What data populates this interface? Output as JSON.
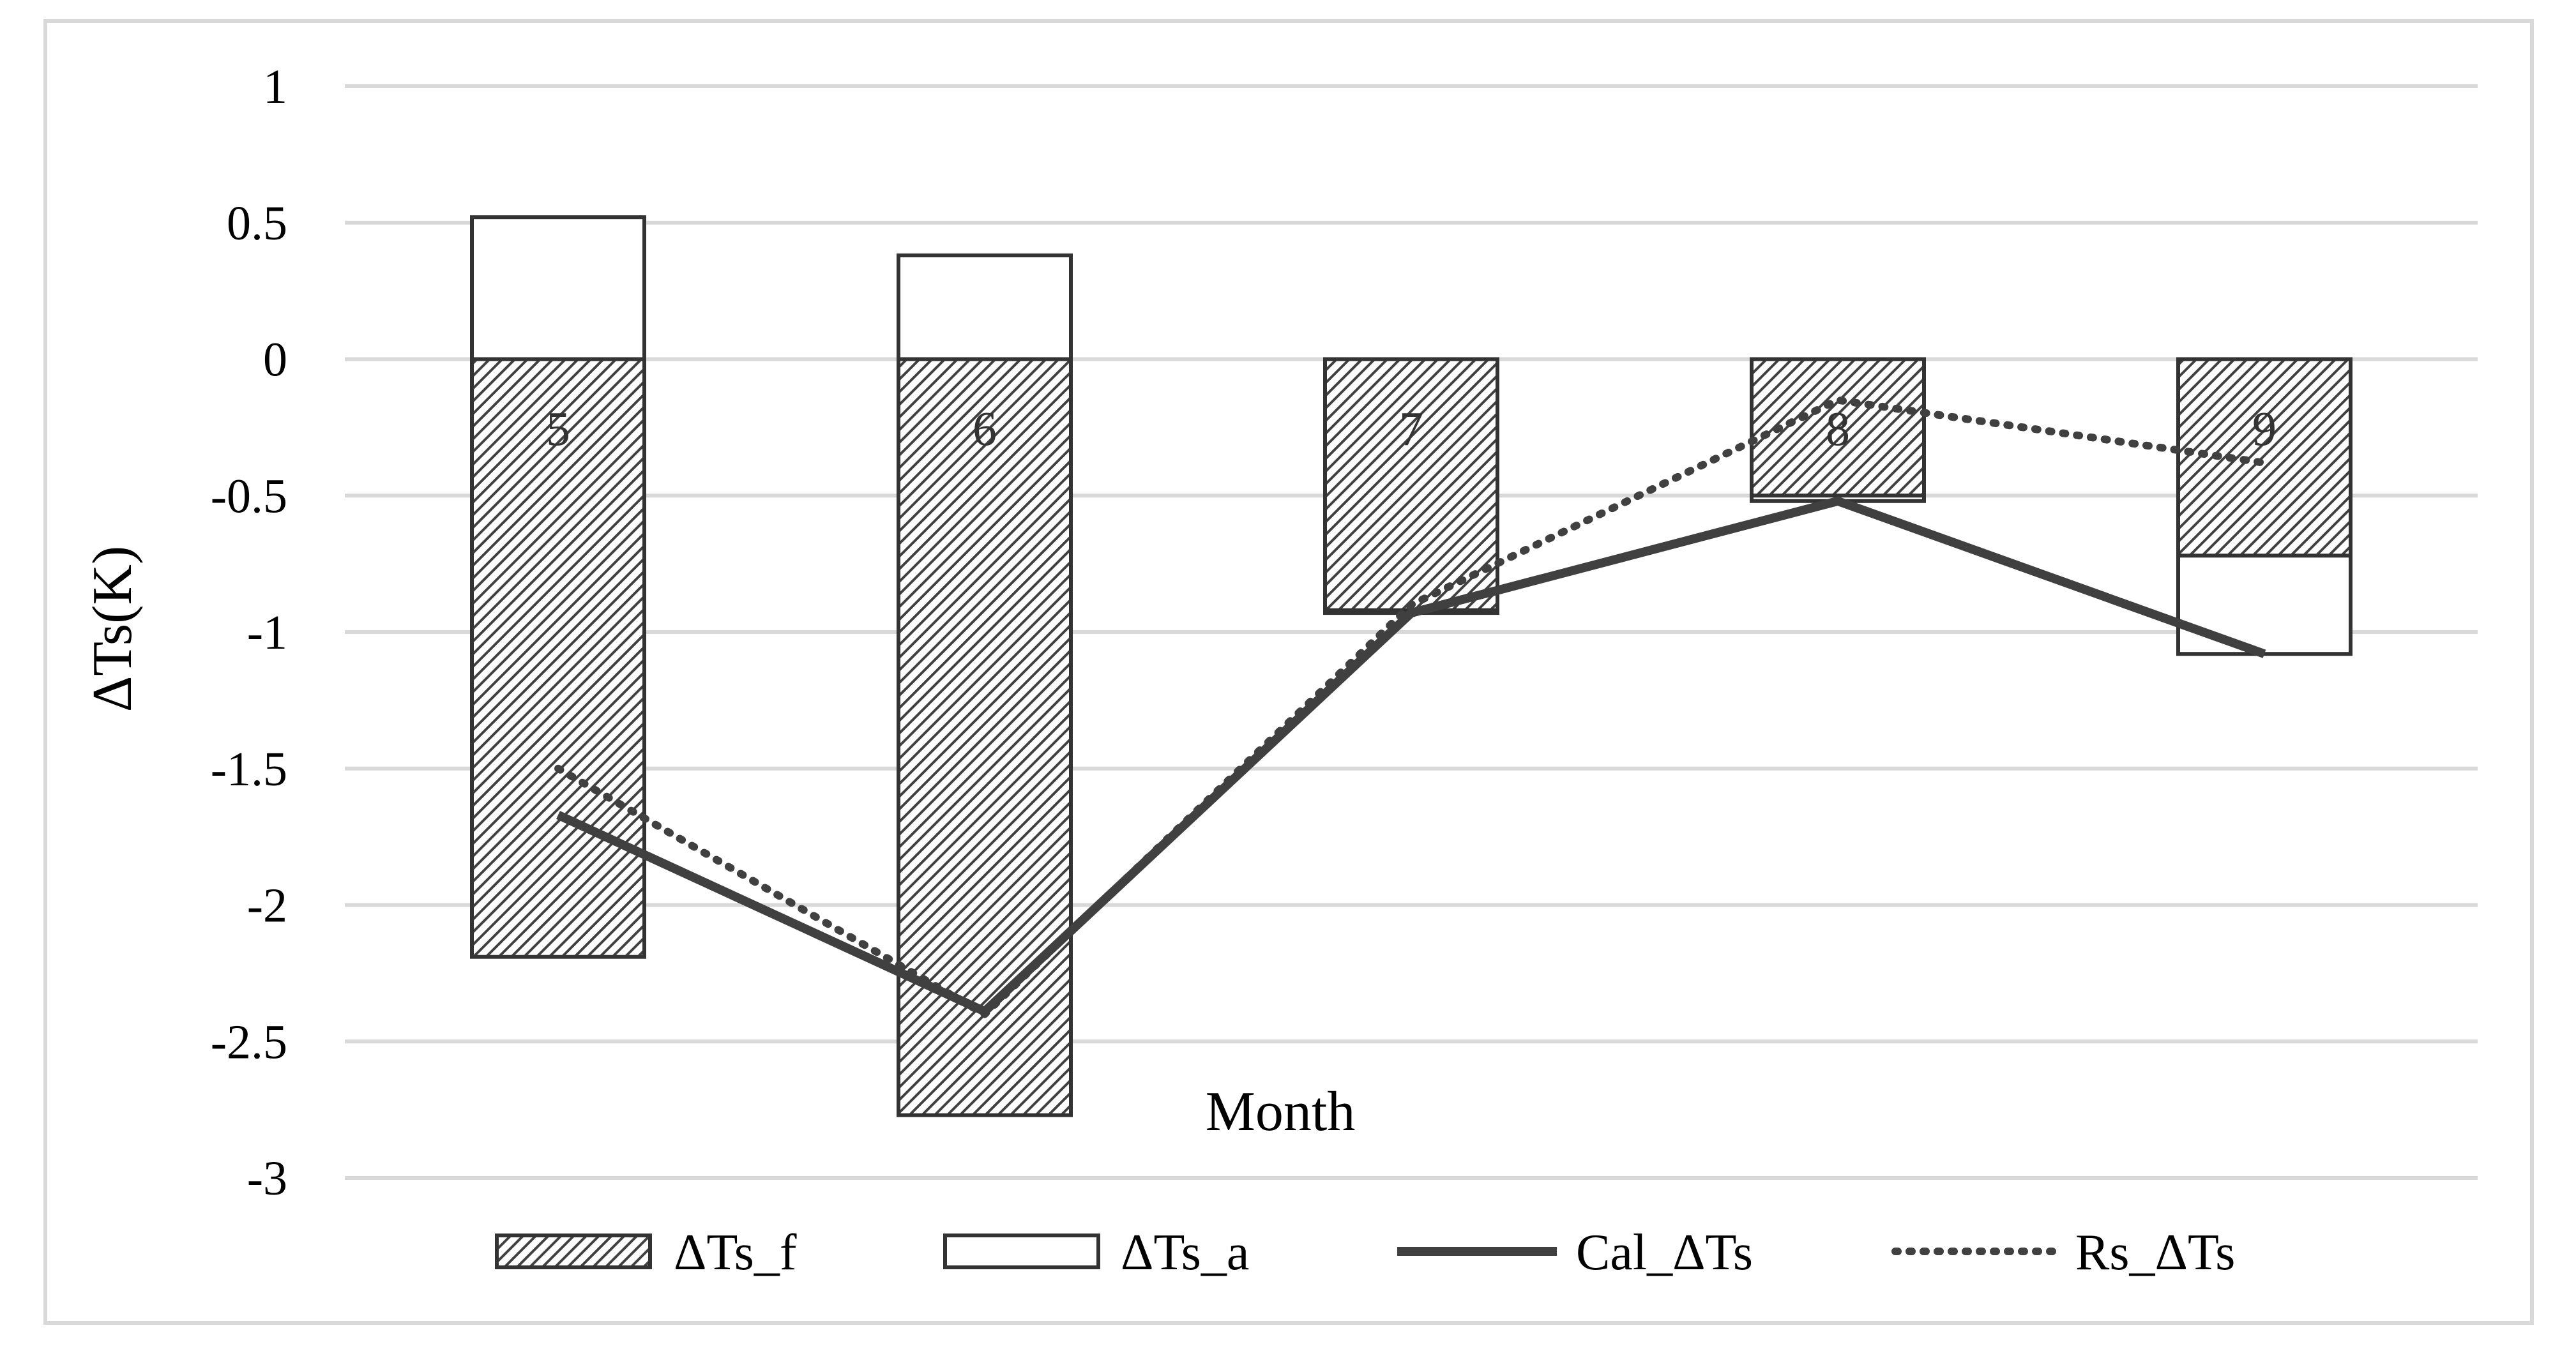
{
  "chart_data": {
    "type": "bar",
    "categories": [
      "5",
      "6",
      "7",
      "8",
      "9"
    ],
    "series": [
      {
        "name": "ΔTs_f",
        "kind": "bar",
        "pattern": "diagonal-hatch",
        "values": [
          -2.19,
          -2.77,
          -0.92,
          -0.5,
          -0.72
        ]
      },
      {
        "name": "ΔTs_a",
        "kind": "bar",
        "pattern": "none",
        "values": [
          0.52,
          0.38,
          -0.01,
          -0.02,
          -0.36
        ]
      },
      {
        "name": "Cal_ΔTs",
        "kind": "line",
        "style": "solid",
        "values": [
          -1.67,
          -2.39,
          -0.93,
          -0.52,
          -1.08
        ]
      },
      {
        "name": "Rs_ΔTs",
        "kind": "line",
        "style": "dotted",
        "values": [
          -1.5,
          -2.4,
          -0.9,
          -0.15,
          -0.38
        ]
      }
    ],
    "stacked": true,
    "xlabel": "Month",
    "ylabel": "ΔTs(K)",
    "ylim": [
      -3,
      1
    ],
    "yticks": [
      "1",
      "0.5",
      "0",
      "-0.5",
      "-1",
      "-1.5",
      "-2",
      "-2.5",
      "-3"
    ],
    "ytick_values": [
      1,
      0.5,
      0,
      -0.5,
      -1,
      -1.5,
      -2,
      -2.5,
      -3
    ],
    "grid": true,
    "legend_position": "bottom",
    "colors": {
      "line": "#404040",
      "bar_edge": "#333333",
      "grid": "#d9d9d9",
      "hatch": "#404040"
    }
  }
}
